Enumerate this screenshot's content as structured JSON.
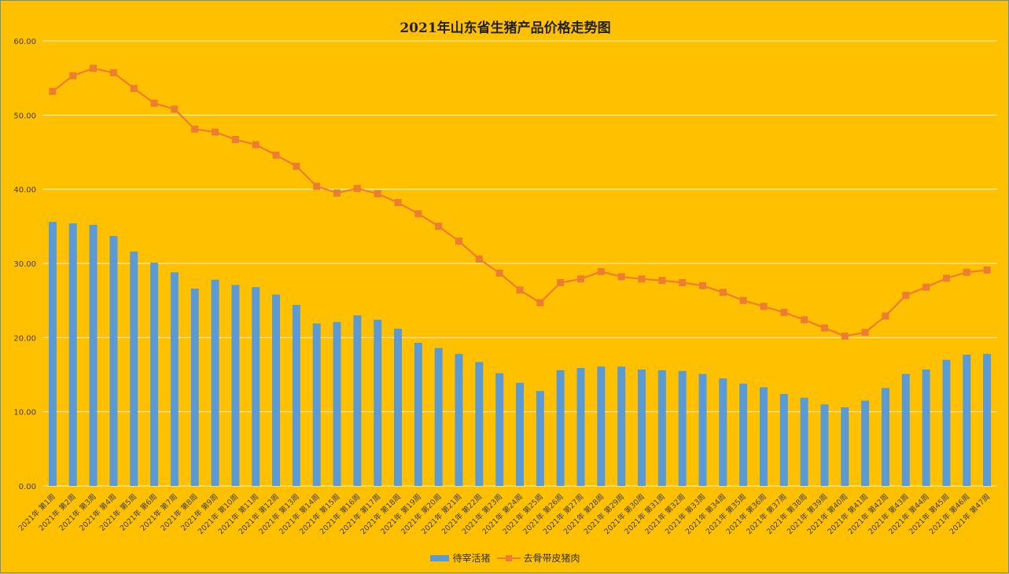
{
  "chart_data": {
    "type": "bar",
    "title": "2021年山东省生猪产品价格走势图",
    "xlabel": "",
    "ylabel": "",
    "ylim": [
      0,
      60
    ],
    "yticks": [
      "0.00",
      "10.00",
      "20.00",
      "30.00",
      "40.00",
      "50.00",
      "60.00"
    ],
    "grid": true,
    "legend_position": "bottom",
    "categories": [
      "2021年 第1周",
      "2021年 第2周",
      "2021年 第3周",
      "2021年 第4周",
      "2021年 第5周",
      "2021年 第6周",
      "2021年 第7周",
      "2021年 第8周",
      "2021年 第9周",
      "2021年 第10周",
      "2021年 第11周",
      "2021年 第12周",
      "2021年 第13周",
      "2021年 第14周",
      "2021年 第15周",
      "2021年 第16周",
      "2021年 第17周",
      "2021年 第18周",
      "2021年 第19周",
      "2021年 第20周",
      "2021年 第21周",
      "2021年 第22周",
      "2021年 第23周",
      "2021年 第24周",
      "2021年 第25周",
      "2021年 第26周",
      "2021年 第27周",
      "2021年 第28周",
      "2021年 第29周",
      "2021年 第30周",
      "2021年 第31周",
      "2021年 第32周",
      "2021年 第33周",
      "2021年 第34周",
      "2021年 第35周",
      "2021年 第36周",
      "2021年 第37周",
      "2021年 第38周",
      "2021年 第39周",
      "2021年 第40周",
      "2021年 第41周",
      "2021年 第42周",
      "2021年 第43周",
      "2021年 第44周",
      "2021年 第45周",
      "2021年 第46周",
      "2021年 第47周"
    ],
    "series": [
      {
        "name": "待宰活猪",
        "type": "bar",
        "color": "#5b9bd5",
        "values": [
          35.6,
          35.4,
          35.2,
          33.7,
          31.6,
          30.1,
          28.8,
          26.6,
          27.8,
          27.1,
          26.8,
          25.8,
          24.4,
          21.9,
          22.1,
          23.0,
          22.4,
          21.2,
          19.3,
          18.6,
          17.8,
          16.7,
          15.2,
          13.9,
          12.8,
          15.6,
          15.9,
          16.1,
          16.1,
          15.7,
          15.6,
          15.5,
          15.1,
          14.5,
          13.8,
          13.3,
          12.4,
          11.9,
          11.0,
          10.6,
          11.5,
          13.2,
          15.1,
          15.7,
          17.0,
          17.7,
          17.8
        ]
      },
      {
        "name": "去骨带皮猪肉",
        "type": "line",
        "color": "#ed7d31",
        "values": [
          53.2,
          55.3,
          56.3,
          55.7,
          53.6,
          51.6,
          50.8,
          48.1,
          47.7,
          46.7,
          46.0,
          44.6,
          43.1,
          40.4,
          39.5,
          40.1,
          39.4,
          38.2,
          36.7,
          35.0,
          33.0,
          30.6,
          28.7,
          26.4,
          24.7,
          27.4,
          27.9,
          28.9,
          28.2,
          27.9,
          27.7,
          27.4,
          27.0,
          26.1,
          25.0,
          24.2,
          23.4,
          22.4,
          21.3,
          20.2,
          20.7,
          22.9,
          25.7,
          26.8,
          28.0,
          28.8,
          29.1
        ]
      }
    ]
  }
}
